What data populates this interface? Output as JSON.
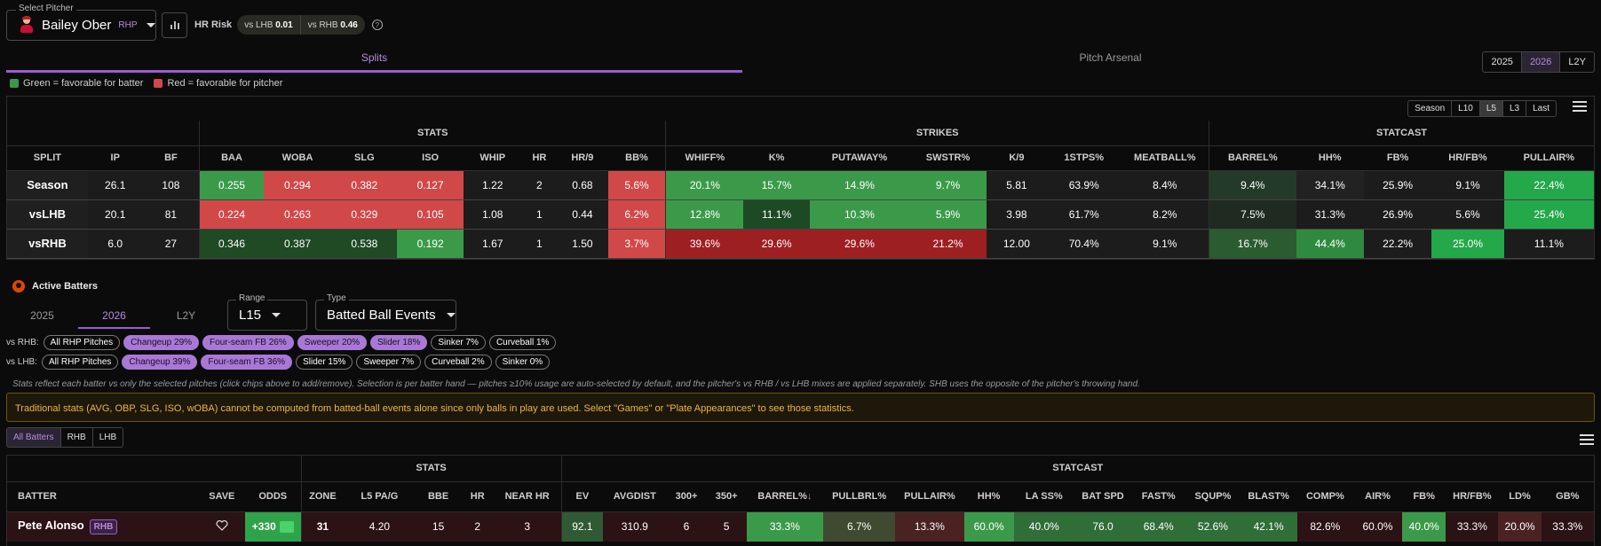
{
  "pitcher": {
    "select_label": "Select Pitcher",
    "name": "Bailey Ober",
    "hand": "RHP",
    "hr_risk_label": "HR Risk",
    "vs_lhb_label": "vs LHB",
    "vs_lhb_value": "0.01",
    "vs_rhb_label": "vs RHB",
    "vs_rhb_value": "0.46",
    "help": "?"
  },
  "tabs": {
    "splits": "Splits",
    "arsenal": "Pitch Arsenal"
  },
  "years": [
    "2025",
    "2026",
    "L2Y"
  ],
  "years_active": "2026",
  "legend": {
    "green": "Green = favorable for batter",
    "red": "Red = favorable for pitcher"
  },
  "colors": {
    "accent": "#9b5bd6",
    "green": "#3b9a49",
    "red": "#d14848",
    "warn": "#f0b54a"
  },
  "ranges": [
    "Season",
    "L10",
    "L5",
    "L3",
    "Last"
  ],
  "ranges_active": "L5",
  "splits": {
    "groups": {
      "stats": "STATS",
      "strikes": "STRIKES",
      "statcast": "STATCAST"
    },
    "columns": [
      "SPLIT",
      "IP",
      "BF",
      "BAA",
      "WOBA",
      "SLG",
      "ISO",
      "WHIP",
      "HR",
      "HR/9",
      "BB%",
      "WHIFF%",
      "K%",
      "PUTAWAY%",
      "SWSTR%",
      "K/9",
      "1STPS%",
      "MEATBALL%",
      "BARREL%",
      "HH%",
      "FB%",
      "HR/FB%",
      "PULLAIR%"
    ],
    "rows": [
      {
        "cells": [
          "Season",
          "26.1",
          "108",
          "0.255",
          "0.294",
          "0.382",
          "0.127",
          "1.22",
          "2",
          "0.68",
          "5.6%",
          "20.1%",
          "15.7%",
          "14.9%",
          "9.7%",
          "5.81",
          "63.9%",
          "8.4%",
          "9.4%",
          "34.1%",
          "25.9%",
          "9.1%",
          "22.4%"
        ],
        "colors": [
          "",
          "",
          "",
          "#3b9a49",
          "#d14848",
          "#d14848",
          "#d14848",
          "",
          "",
          "",
          "#d14848",
          "#3b9a49",
          "#3b9a49",
          "#3b9a49",
          "#3b9a49",
          "",
          "",
          "",
          "#243a28",
          "#222",
          "#1c1c1c",
          "#1c1c1c",
          "#23a84a"
        ]
      },
      {
        "cells": [
          "vsLHB",
          "20.1",
          "81",
          "0.224",
          "0.263",
          "0.329",
          "0.105",
          "1.08",
          "1",
          "0.44",
          "6.2%",
          "12.8%",
          "11.1%",
          "10.3%",
          "5.9%",
          "3.98",
          "61.7%",
          "8.2%",
          "7.5%",
          "31.3%",
          "26.9%",
          "5.6%",
          "25.4%"
        ],
        "colors": [
          "",
          "",
          "",
          "#d14848",
          "#d14848",
          "#d14848",
          "#d14848",
          "",
          "",
          "",
          "#d14848",
          "#3b9a49",
          "#1d4a25",
          "#3b9a49",
          "#3b9a49",
          "",
          "",
          "",
          "#1f2a21",
          "#1c1c1c",
          "#1c1c1c",
          "#1c1c1c",
          "#23a84a"
        ]
      },
      {
        "cells": [
          "vsRHB",
          "6.0",
          "27",
          "0.346",
          "0.387",
          "0.538",
          "0.192",
          "1.67",
          "1",
          "1.50",
          "3.7%",
          "39.6%",
          "29.6%",
          "29.6%",
          "21.2%",
          "12.00",
          "70.4%",
          "9.1%",
          "16.7%",
          "44.4%",
          "22.2%",
          "25.0%",
          "11.1%"
        ],
        "colors": [
          "",
          "",
          "",
          "#1f4a24",
          "#1f4a24",
          "#1f4a24",
          "#3b9a49",
          "",
          "",
          "",
          "#d14848",
          "#9e1f22",
          "#9e1f22",
          "#9e1f22",
          "#9e1f22",
          "",
          "",
          "",
          "#2a5c30",
          "#2f8a3f",
          "#1c1c1c",
          "#23a84a",
          "#1c1c1c"
        ]
      }
    ]
  },
  "active_batters": {
    "title": "Active Batters",
    "year_tabs": [
      "2025",
      "2026",
      "L2Y"
    ],
    "year_active": "2026",
    "range_label": "Range",
    "range_value": "L15",
    "type_label": "Type",
    "type_value": "Batted Ball Events",
    "vs_rhb_label": "vs RHB:",
    "vs_rhb_chips": [
      {
        "label": "All RHP Pitches",
        "sel": false
      },
      {
        "label": "Changeup 29%",
        "sel": true
      },
      {
        "label": "Four-seam FB 26%",
        "sel": true
      },
      {
        "label": "Sweeper 20%",
        "sel": true
      },
      {
        "label": "Slider 18%",
        "sel": true
      },
      {
        "label": "Sinker 7%",
        "sel": false
      },
      {
        "label": "Curveball 1%",
        "sel": false
      }
    ],
    "vs_lhb_label": "vs LHB:",
    "vs_lhb_chips": [
      {
        "label": "All RHP Pitches",
        "sel": false
      },
      {
        "label": "Changeup 39%",
        "sel": true
      },
      {
        "label": "Four-seam FB 36%",
        "sel": true
      },
      {
        "label": "Slider 15%",
        "sel": false
      },
      {
        "label": "Sweeper 7%",
        "sel": false
      },
      {
        "label": "Curveball 2%",
        "sel": false
      },
      {
        "label": "Sinker 0%",
        "sel": false
      }
    ],
    "note": "Stats reflect each batter vs only the selected pitches (click chips above to add/remove). Selection is per batter hand — pitches ≥10% usage are auto-selected by default, and the pitcher's vs RHB / vs LHB mixes are applied separately. SHB uses the opposite of the pitcher's throwing hand.",
    "warning": "Traditional stats (AVG, OBP, SLG, ISO, wOBA) cannot be computed from batted-ball events alone since only balls in play are used. Select \"Games\" or \"Plate Appearances\" to see those statistics.",
    "filters": [
      "All Batters",
      "RHB",
      "LHB"
    ],
    "filter_active": "All Batters"
  },
  "batters": {
    "groups": {
      "stats": "STATS",
      "statcast": "STATCAST"
    },
    "columns": [
      "BATTER",
      "SAVE",
      "ODDS",
      "ZONE",
      "L5 PA/G",
      "BBE",
      "HR",
      "NEAR HR",
      "EV",
      "AVGDIST",
      "300+",
      "350+",
      "BARREL%",
      "PULLBRL%",
      "PULLAIR%",
      "HH%",
      "LA SS%",
      "BAT SPD",
      "FAST%",
      "SQUP%",
      "BLAST%",
      "COMP%",
      "AIR%",
      "FB%",
      "HR/FB%",
      "LD%",
      "GB%"
    ],
    "sort_arrow": "↓",
    "rows": [
      {
        "name": "Pete Alonso",
        "hand": "RHB",
        "odds": "+330",
        "cells": [
          "31",
          "4.20",
          "15",
          "2",
          "3",
          "92.1",
          "310.9",
          "6",
          "5",
          "33.3%",
          "6.7%",
          "13.3%",
          "60.0%",
          "40.0%",
          "76.0",
          "68.4%",
          "52.6%",
          "42.1%",
          "82.6%",
          "60.0%",
          "40.0%",
          "33.3%",
          "20.0%",
          "33.3%"
        ],
        "colors": [
          "#2b1214",
          "#2b1214",
          "#2b1214",
          "#2b1214",
          "#2b1214",
          "#2f5a33",
          "#2b1214",
          "#2b1214",
          "#2b1214",
          "#3b9a49",
          "#3f4a30",
          "#4a2222",
          "#3b9a49",
          "#2f6e37",
          "#2f6e37",
          "#2f6e37",
          "#2f6e37",
          "#2f6e37",
          "#2b1214",
          "#2b1214",
          "#3b9a49",
          "#2b1214",
          "#4a2222",
          "#2b1214"
        ]
      }
    ]
  }
}
